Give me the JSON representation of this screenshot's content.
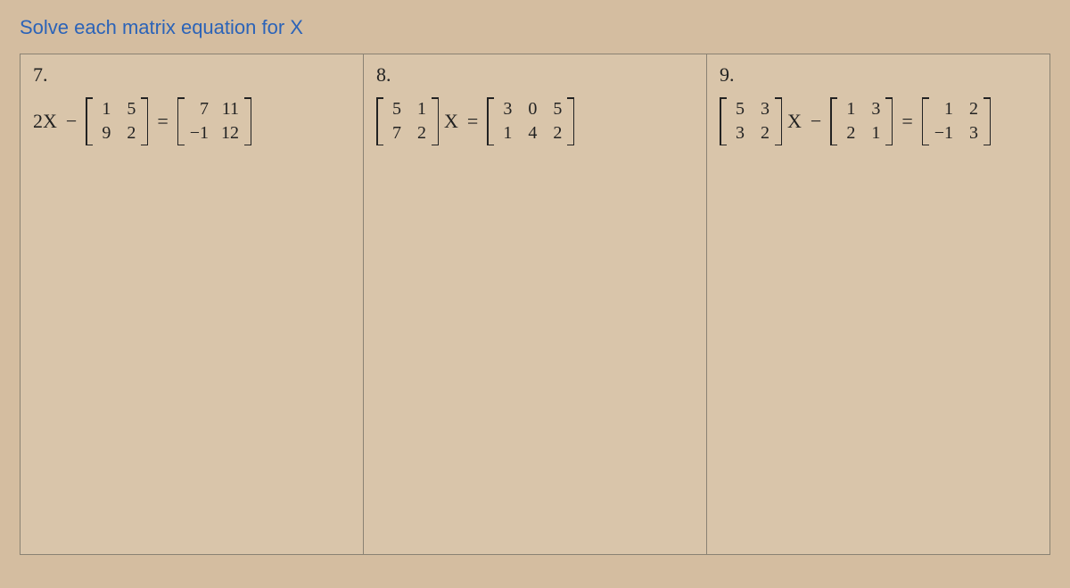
{
  "title": "Solve each matrix equation for X",
  "problems": [
    {
      "number": "7.",
      "parts": [
        {
          "type": "text",
          "value": "2X"
        },
        {
          "type": "op",
          "value": "−"
        },
        {
          "type": "matrix",
          "cols": 2,
          "cells": [
            "1",
            "5",
            "9",
            "2"
          ]
        },
        {
          "type": "op",
          "value": "="
        },
        {
          "type": "matrix",
          "cols": 2,
          "cells": [
            "7",
            "11",
            "−1",
            "12"
          ]
        }
      ]
    },
    {
      "number": "8.",
      "parts": [
        {
          "type": "matrix",
          "cols": 2,
          "cells": [
            "5",
            "1",
            "7",
            "2"
          ]
        },
        {
          "type": "text",
          "value": "X"
        },
        {
          "type": "op",
          "value": "="
        },
        {
          "type": "matrix",
          "cols": 3,
          "cells": [
            "3",
            "0",
            "5",
            "1",
            "4",
            "2"
          ]
        }
      ]
    },
    {
      "number": "9.",
      "parts": [
        {
          "type": "matrix",
          "cols": 2,
          "cells": [
            "5",
            "3",
            "3",
            "2"
          ]
        },
        {
          "type": "text",
          "value": "X"
        },
        {
          "type": "op",
          "value": "−"
        },
        {
          "type": "matrix",
          "cols": 2,
          "cells": [
            "1",
            "3",
            "2",
            "1"
          ]
        },
        {
          "type": "op",
          "value": "="
        },
        {
          "type": "matrix",
          "cols": 2,
          "cells": [
            "1",
            "2",
            "−1",
            "3"
          ]
        }
      ]
    }
  ]
}
